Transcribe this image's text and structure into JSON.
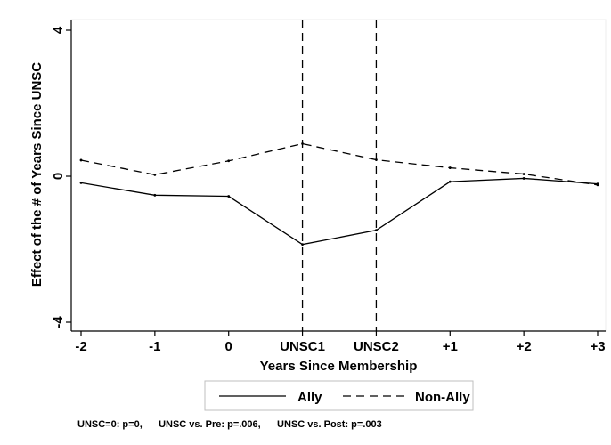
{
  "chart_data": {
    "type": "line",
    "title": "",
    "xlabel": "Years Since Membership",
    "ylabel": "Effect of the # of Years Since UNSC",
    "categories": [
      "-2",
      "-1",
      "0",
      "UNSC1",
      "UNSC2",
      "+1",
      "+2",
      "+3"
    ],
    "ylim": [
      -4,
      4
    ],
    "yticks": [
      "-4",
      "0",
      "4"
    ],
    "grid": false,
    "legend_position": "bottom",
    "vertical_reference_lines_at": [
      "UNSC1",
      "UNSC2"
    ],
    "series": [
      {
        "name": "Ally",
        "style": "solid",
        "color": "#000000",
        "values": [
          -0.18,
          -0.52,
          -0.55,
          -1.87,
          -1.48,
          -0.15,
          -0.06,
          -0.21
        ]
      },
      {
        "name": "Non-Ally",
        "style": "dashed",
        "color": "#000000",
        "values": [
          0.44,
          0.04,
          0.42,
          0.89,
          0.45,
          0.23,
          0.06,
          -0.24
        ]
      }
    ],
    "note": "UNSC=0: p=0,      UNSC vs. Pre: p=.006,      UNSC vs. Post: p=.003"
  }
}
